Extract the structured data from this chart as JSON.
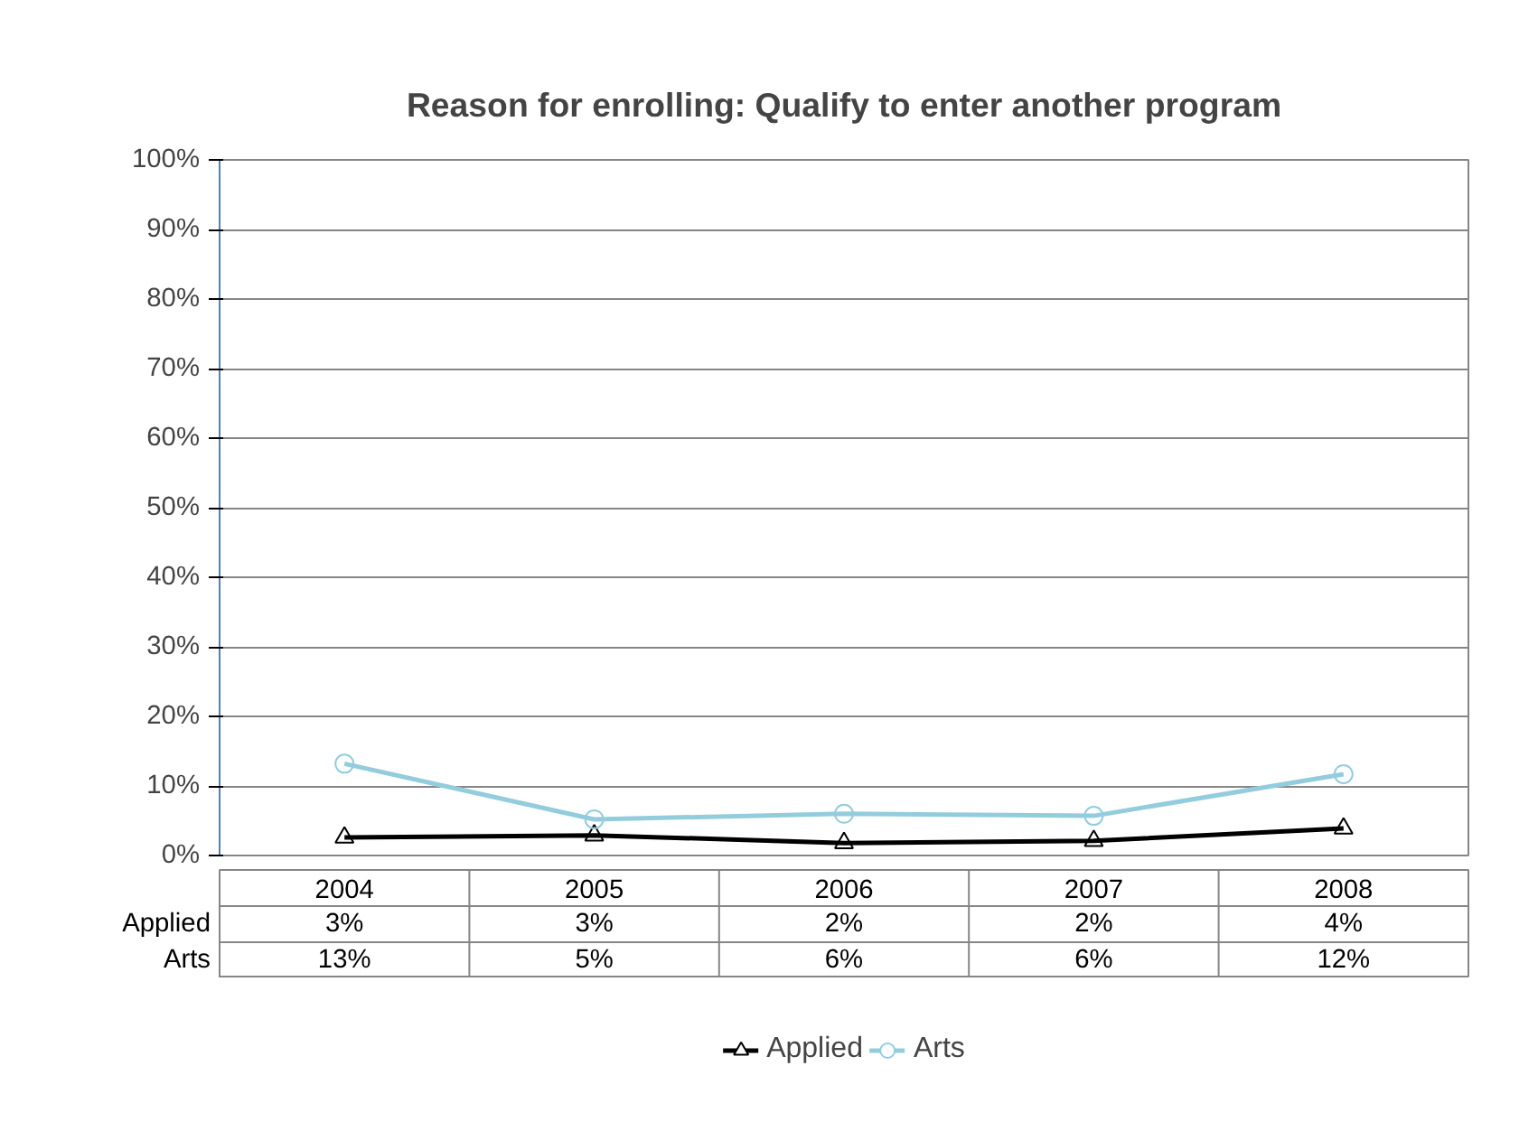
{
  "chart_data": {
    "type": "line",
    "title": "Reason for enrolling: Qualify to enter another program",
    "categories": [
      "2004",
      "2005",
      "2006",
      "2007",
      "2008"
    ],
    "series": [
      {
        "name": "Applied",
        "color": "#000000",
        "marker": "triangle",
        "values": [
          2.6,
          2.9,
          1.8,
          2.1,
          3.9
        ],
        "value_labels": [
          "3%",
          "3%",
          "2%",
          "2%",
          "4%"
        ]
      },
      {
        "name": "Arts",
        "color": "#93cddd",
        "marker": "circle",
        "values": [
          13.2,
          5.2,
          6.0,
          5.7,
          11.7
        ],
        "value_labels": [
          "13%",
          "5%",
          "6%",
          "6%",
          "12%"
        ]
      }
    ],
    "ylim": [
      0,
      100
    ],
    "yticks": [
      {
        "value": 0,
        "label": "0%"
      },
      {
        "value": 10,
        "label": "10%"
      },
      {
        "value": 20,
        "label": "20%"
      },
      {
        "value": 30,
        "label": "30%"
      },
      {
        "value": 40,
        "label": "40%"
      },
      {
        "value": 50,
        "label": "50%"
      },
      {
        "value": 60,
        "label": "60%"
      },
      {
        "value": 70,
        "label": "70%"
      },
      {
        "value": 80,
        "label": "80%"
      },
      {
        "value": 90,
        "label": "90%"
      },
      {
        "value": 100,
        "label": "100%"
      }
    ],
    "grid": "y",
    "legend": "bottom",
    "line_style": "solid"
  }
}
